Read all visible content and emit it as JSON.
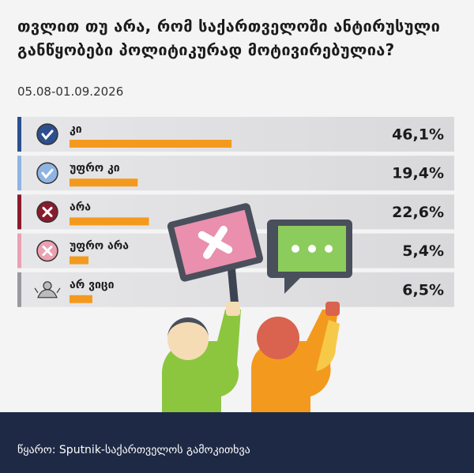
{
  "chart_data": {
    "type": "bar",
    "orientation": "horizontal",
    "title": "თვლით თუ არა, რომ საქართველოში ანტირუსული განწყობები პოლიტიკურად მოტივირებულია?",
    "subtitle": "05.08-01.09.2026",
    "categories": [
      "კი",
      "უფრო კი",
      "არა",
      "უფრო არა",
      "არ ვიცი"
    ],
    "values": [
      46.1,
      19.4,
      22.6,
      5.4,
      6.5
    ],
    "value_labels": [
      "46,1%",
      "19,4%",
      "22,6%",
      "5,4%",
      "6,5%"
    ],
    "color": "#f39a1e",
    "xlim": [
      0,
      100
    ],
    "source": "წყარო: Sputnik-საქართველოს გამოკითხვა"
  }
}
